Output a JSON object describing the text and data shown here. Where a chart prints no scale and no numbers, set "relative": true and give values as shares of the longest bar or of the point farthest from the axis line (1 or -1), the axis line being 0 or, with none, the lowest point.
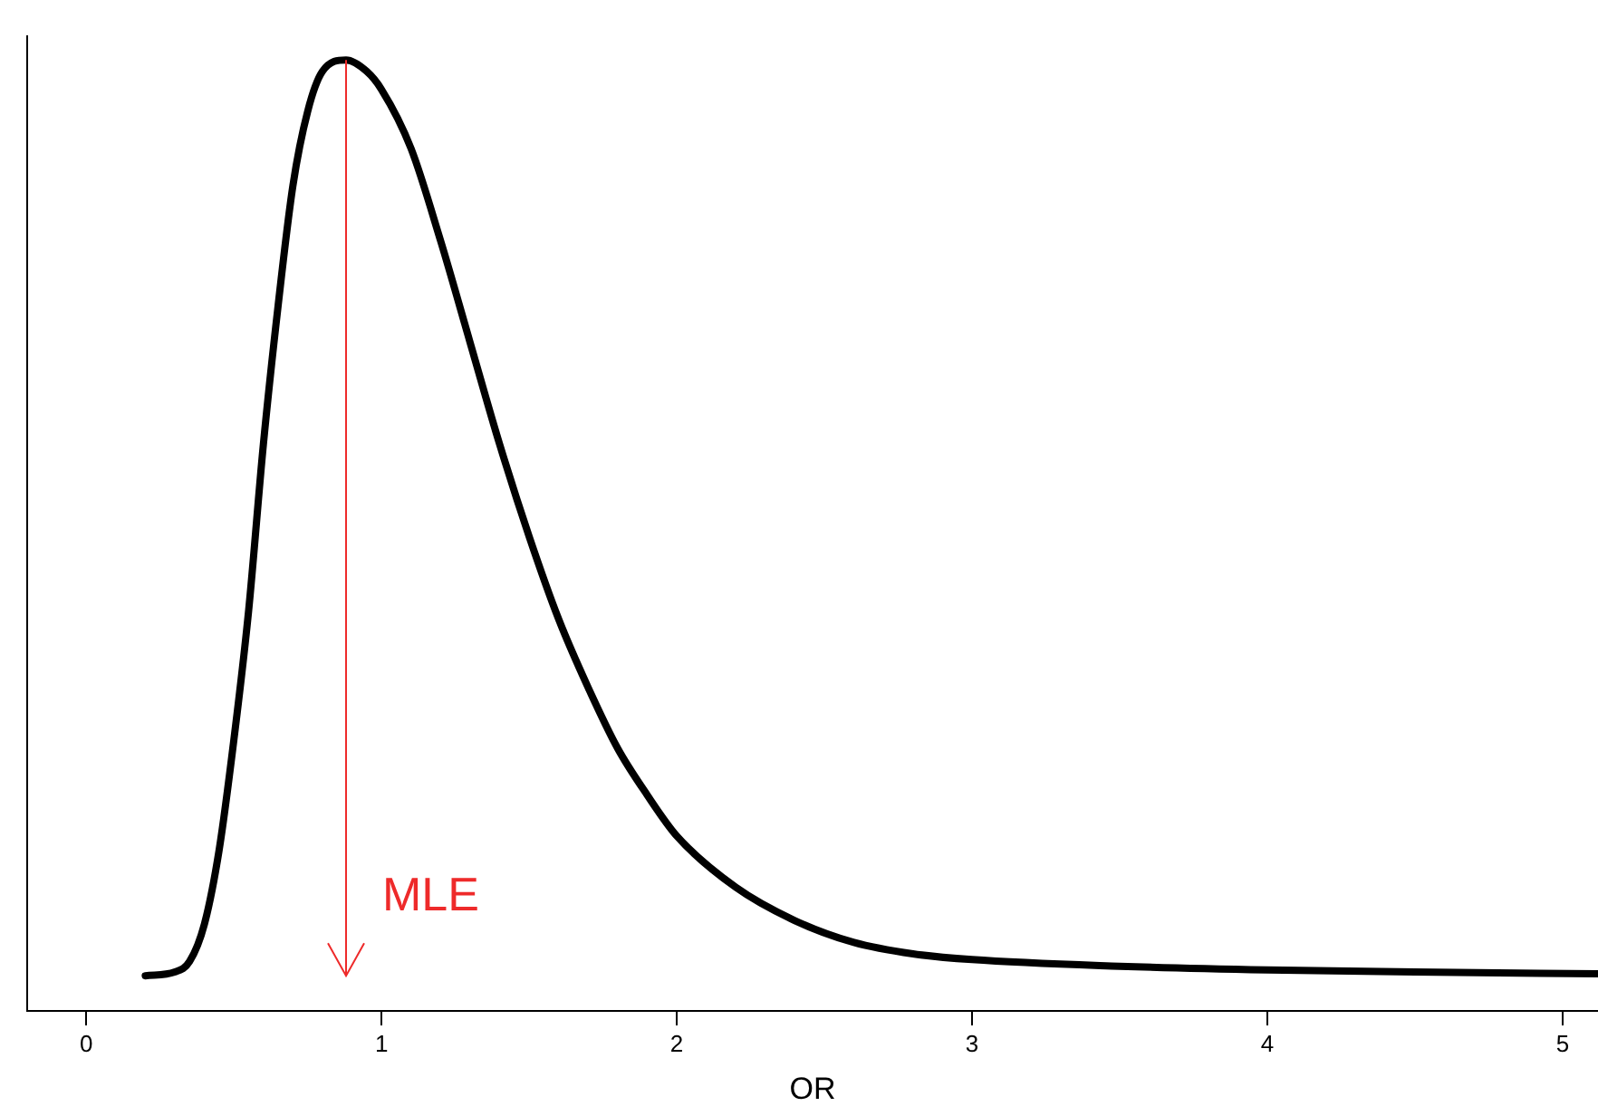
{
  "chart_data": {
    "type": "line",
    "xlabel": "OR",
    "relative": true,
    "xlim": [
      -0.2,
      5.12
    ],
    "xticks": [
      0,
      1,
      2,
      3,
      4,
      5
    ],
    "tick_labels": "x",
    "grid": false,
    "legend": false,
    "marker": "none",
    "line_style": "solid",
    "series": [
      {
        "color": "#000000",
        "x": [
          0.2,
          0.3,
          0.35,
          0.4,
          0.45,
          0.5,
          0.55,
          0.6,
          0.65,
          0.7,
          0.75,
          0.8,
          0.88,
          0.95,
          1.0,
          1.1,
          1.2,
          1.3,
          1.4,
          1.5,
          1.6,
          1.7,
          1.8,
          1.9,
          2.0,
          2.2,
          2.4,
          2.6,
          2.8,
          3.0,
          3.5,
          4.0,
          4.5,
          5.12
        ],
        "values": [
          0.037,
          0.041,
          0.052,
          0.091,
          0.169,
          0.285,
          0.421,
          0.596,
          0.742,
          0.868,
          0.946,
          0.988,
          1,
          0.988,
          0.969,
          0.907,
          0.81,
          0.703,
          0.596,
          0.499,
          0.412,
          0.34,
          0.276,
          0.227,
          0.184,
          0.13,
          0.095,
          0.072,
          0.06,
          0.054,
          0.047,
          0.043,
          0.041,
          0.039
        ]
      }
    ],
    "ref_lines": [
      {
        "axis": "x",
        "value": 0.88,
        "label": "MLE",
        "color": "#ee2a2a"
      }
    ]
  }
}
